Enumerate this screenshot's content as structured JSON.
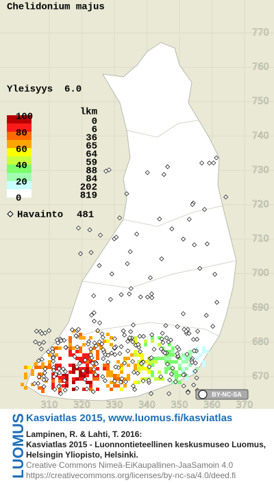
{
  "title": "Chelidonium majus",
  "frequency": {
    "label": "Yleisyys",
    "value": "6.0"
  },
  "legend": {
    "count_header": "lkm",
    "scale_labels": [
      "100",
      "80",
      "60",
      "40",
      "20",
      "0"
    ],
    "classes": [
      {
        "color": "#b80000",
        "count": 0
      },
      {
        "color": "#ff1a1a",
        "count": 6
      },
      {
        "color": "#ff6a00",
        "count": 36
      },
      {
        "color": "#ffa500",
        "count": 65
      },
      {
        "color": "#ffff00",
        "count": 64
      },
      {
        "color": "#c8ff3c",
        "count": 59
      },
      {
        "color": "#7cff6a",
        "count": 88
      },
      {
        "color": "#a0ffb0",
        "count": 84
      },
      {
        "color": "#c8ffff",
        "count": 202
      },
      {
        "color": "#ffffff",
        "count": 819
      }
    ]
  },
  "observations": {
    "label": "Havainto",
    "count": 481
  },
  "grid": {
    "y_labels": [
      "770",
      "760",
      "750",
      "740",
      "730",
      "720",
      "710",
      "700",
      "690",
      "680",
      "670"
    ],
    "x_labels": [
      "310",
      "320",
      "330",
      "340",
      "350",
      "360",
      "370"
    ]
  },
  "badge": "BY-NC-SA",
  "brand": "LUOMUS",
  "footer": {
    "link": "Kasviatlas 2015, www.luomus.fi/kasviatlas",
    "citation": [
      "Lampinen, R. & Lahti, T. 2016:",
      "Kasviatlas 2015 - Luonnontieteellinen keskusmuseo Luomus,",
      "Helsingin Yliopisto, Helsinki."
    ],
    "license": [
      "Creative Commons Nimeä-EiKaupallinen-JaaSamoin 4.0",
      "https://creativecommons.org/licenses/by-nc-sa/4.0/deed.fi"
    ]
  }
}
